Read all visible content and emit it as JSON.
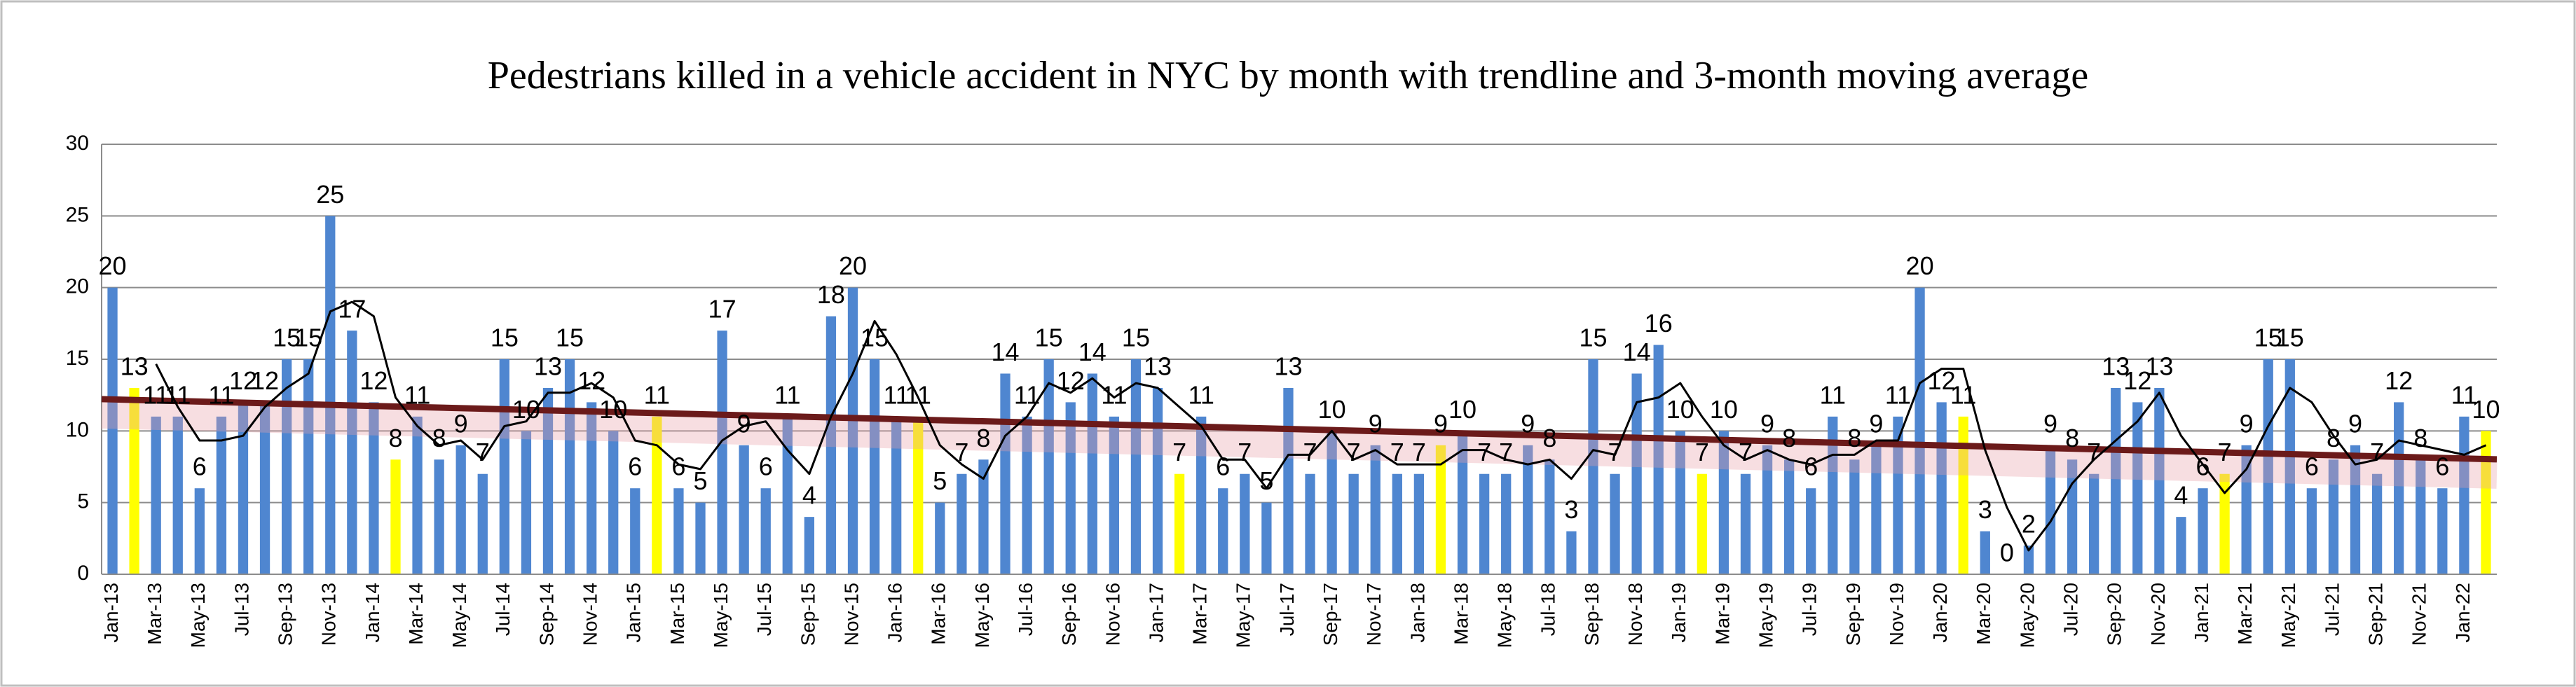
{
  "chart_data": {
    "type": "bar",
    "title": "Pedestrians killed in a vehicle accident  in NYC  by month with trendline and 3-month moving average",
    "categories": [
      "Jan-13",
      null,
      "Mar-13",
      null,
      "May-13",
      null,
      "Jul-13",
      null,
      "Sep-13",
      null,
      "Nov-13",
      null,
      "Jan-14",
      null,
      "Mar-14",
      null,
      "May-14",
      null,
      "Jul-14",
      null,
      "Sep-14",
      null,
      "Nov-14",
      null,
      "Jan-15",
      null,
      "Mar-15",
      null,
      "May-15",
      null,
      "Jul-15",
      null,
      "Sep-15",
      null,
      "Nov-15",
      null,
      "Jan-16",
      null,
      "Mar-16",
      null,
      "May-16",
      null,
      "Jul-16",
      null,
      "Sep-16",
      null,
      "Nov-16",
      null,
      "Jan-17",
      null,
      "Mar-17",
      null,
      "May-17",
      null,
      "Jul-17",
      null,
      "Sep-17",
      null,
      "Nov-17",
      null,
      "Jan-18",
      null,
      "Mar-18",
      null,
      "May-18",
      null,
      "Jul-18",
      null,
      "Sep-18",
      null,
      "Nov-18",
      null,
      "Jan-19",
      null,
      "Mar-19",
      null,
      "May-19",
      null,
      "Jul-19",
      null,
      "Sep-19",
      null,
      "Nov-19",
      null,
      "Jan-20",
      null,
      "Mar-20",
      null,
      "May-20",
      null,
      "Jul-20",
      null,
      "Sep-20",
      null,
      "Nov-20",
      null,
      "Jan-21",
      null,
      "Mar-21",
      null,
      "May-21",
      null,
      "Jul-21",
      null,
      "Sep-21",
      null,
      "Nov-21",
      null,
      "Jan-22",
      null
    ],
    "values": [
      20,
      13,
      11,
      11,
      6,
      11,
      12,
      12,
      15,
      15,
      25,
      17,
      12,
      8,
      11,
      8,
      9,
      7,
      15,
      10,
      13,
      15,
      12,
      10,
      6,
      11,
      6,
      5,
      17,
      9,
      6,
      11,
      4,
      18,
      20,
      15,
      11,
      11,
      5,
      7,
      8,
      14,
      11,
      15,
      12,
      14,
      11,
      15,
      13,
      7,
      11,
      6,
      7,
      5,
      13,
      7,
      10,
      7,
      9,
      7,
      7,
      9,
      10,
      7,
      7,
      9,
      8,
      3,
      15,
      7,
      14,
      16,
      10,
      7,
      10,
      7,
      9,
      8,
      6,
      11,
      8,
      9,
      11,
      20,
      12,
      11,
      3,
      0,
      2,
      9,
      8,
      7,
      13,
      12,
      13,
      4,
      6,
      7,
      9,
      15,
      15,
      6,
      8,
      9,
      7,
      12,
      8,
      6,
      11,
      10
    ],
    "colors": [
      "#4f86d0",
      "#ffff00",
      "#4f86d0",
      "#4f86d0",
      "#4f86d0",
      "#4f86d0",
      "#4f86d0",
      "#4f86d0",
      "#4f86d0",
      "#4f86d0",
      "#4f86d0",
      "#4f86d0",
      "#4f86d0",
      "#ffff00",
      "#4f86d0",
      "#4f86d0",
      "#4f86d0",
      "#4f86d0",
      "#4f86d0",
      "#4f86d0",
      "#4f86d0",
      "#4f86d0",
      "#4f86d0",
      "#4f86d0",
      "#4f86d0",
      "#ffff00",
      "#4f86d0",
      "#4f86d0",
      "#4f86d0",
      "#4f86d0",
      "#4f86d0",
      "#4f86d0",
      "#4f86d0",
      "#4f86d0",
      "#4f86d0",
      "#4f86d0",
      "#4f86d0",
      "#ffff00",
      "#4f86d0",
      "#4f86d0",
      "#4f86d0",
      "#4f86d0",
      "#4f86d0",
      "#4f86d0",
      "#4f86d0",
      "#4f86d0",
      "#4f86d0",
      "#4f86d0",
      "#4f86d0",
      "#ffff00",
      "#4f86d0",
      "#4f86d0",
      "#4f86d0",
      "#4f86d0",
      "#4f86d0",
      "#4f86d0",
      "#4f86d0",
      "#4f86d0",
      "#4f86d0",
      "#4f86d0",
      "#4f86d0",
      "#ffff00",
      "#4f86d0",
      "#4f86d0",
      "#4f86d0",
      "#4f86d0",
      "#4f86d0",
      "#4f86d0",
      "#4f86d0",
      "#4f86d0",
      "#4f86d0",
      "#4f86d0",
      "#4f86d0",
      "#ffff00",
      "#4f86d0",
      "#4f86d0",
      "#4f86d0",
      "#4f86d0",
      "#4f86d0",
      "#4f86d0",
      "#4f86d0",
      "#4f86d0",
      "#4f86d0",
      "#4f86d0",
      "#4f86d0",
      "#ffff00",
      "#4f86d0",
      "#4f86d0",
      "#4f86d0",
      "#4f86d0",
      "#4f86d0",
      "#4f86d0",
      "#4f86d0",
      "#4f86d0",
      "#4f86d0",
      "#4f86d0",
      "#4f86d0",
      "#ffff00",
      "#4f86d0",
      "#4f86d0",
      "#4f86d0",
      "#4f86d0",
      "#4f86d0",
      "#4f86d0",
      "#4f86d0",
      "#4f86d0",
      "#4f86d0",
      "#4f86d0",
      "#4f86d0",
      "#ffff00"
    ],
    "ylim": [
      0,
      30
    ],
    "yticks": [
      0,
      5,
      10,
      15,
      20,
      25,
      30
    ],
    "grid": true,
    "trendline": {
      "color": "#6b1a1a"
    },
    "moving_average": {
      "window": 3,
      "color": "#000000"
    }
  }
}
